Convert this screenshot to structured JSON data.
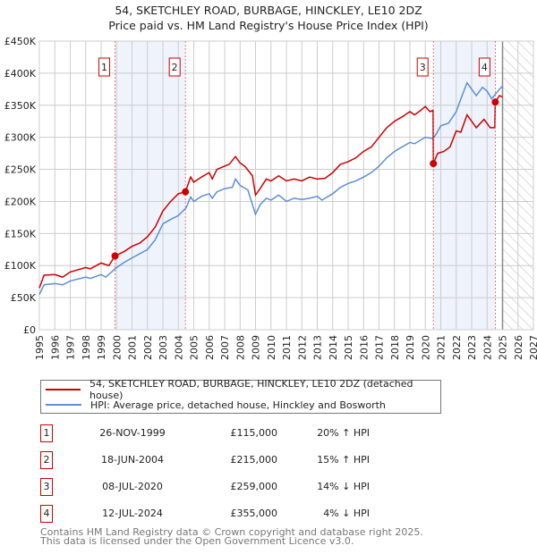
{
  "title": "54, SKETCHLEY ROAD, BURBAGE, HINCKLEY, LE10 2DZ",
  "subtitle": "Price paid vs. HM Land Registry's House Price Index (HPI)",
  "chart_data": {
    "type": "line",
    "xlim": [
      1995,
      2027
    ],
    "ylim": [
      0,
      450000
    ],
    "y_ticks": [
      0,
      50000,
      100000,
      150000,
      200000,
      250000,
      300000,
      350000,
      400000,
      450000
    ],
    "y_tick_labels": [
      "£0",
      "£50K",
      "£100K",
      "£150K",
      "£200K",
      "£250K",
      "£300K",
      "£350K",
      "£400K",
      "£450K"
    ],
    "x_ticks": [
      "1995",
      "1996",
      "1997",
      "1998",
      "1999",
      "2000",
      "2001",
      "2002",
      "2003",
      "2004",
      "2005",
      "2006",
      "2007",
      "2008",
      "2009",
      "2010",
      "2011",
      "2012",
      "2013",
      "2014",
      "2015",
      "2016",
      "2017",
      "2018",
      "2019",
      "2020",
      "2021",
      "2022",
      "2023",
      "2024",
      "2025",
      "2026",
      "2027"
    ],
    "grid": true,
    "forecast_hatch_from": 2025.0,
    "shaded_ranges": [
      [
        1999.9,
        2004.46
      ],
      [
        2020.52,
        2024.53
      ]
    ],
    "series": [
      {
        "name": "54, SKETCHLEY ROAD, BURBAGE, HINCKLEY, LE10 2DZ (detached house)",
        "color": "#cc0000",
        "x": [
          1995,
          1995.3,
          1996,
          1996.5,
          1997,
          1998,
          1998.3,
          1999,
          1999.5,
          1999.9,
          2000.5,
          2001,
          2001.5,
          2002,
          2002.5,
          2003,
          2003.5,
          2004,
          2004.46,
          2004.8,
          2005,
          2005.5,
          2006,
          2006.2,
          2006.5,
          2007,
          2007.3,
          2007.7,
          2008,
          2008.3,
          2008.8,
          2009,
          2009.3,
          2009.7,
          2010,
          2010.5,
          2011,
          2011.5,
          2012,
          2012.5,
          2013,
          2013.5,
          2014,
          2014.5,
          2015,
          2015.5,
          2016,
          2016.5,
          2017,
          2017.5,
          2018,
          2018.5,
          2019,
          2019.3,
          2019.7,
          2020,
          2020.3,
          2020.5,
          2020.52,
          2020.8,
          2021.2,
          2021.6,
          2022,
          2022.3,
          2022.7,
          2023,
          2023.3,
          2023.8,
          2024.2,
          2024.5,
          2024.53,
          2024.8,
          2025
        ],
        "y": [
          65,
          85,
          86,
          82,
          90,
          97,
          95,
          104,
          100,
          115,
          122,
          130,
          135,
          145,
          160,
          185,
          200,
          212,
          215,
          238,
          230,
          238,
          245,
          235,
          250,
          255,
          258,
          270,
          260,
          255,
          240,
          210,
          220,
          235,
          232,
          240,
          232,
          235,
          232,
          238,
          235,
          236,
          245,
          258,
          262,
          268,
          278,
          285,
          300,
          315,
          325,
          332,
          340,
          335,
          342,
          348,
          340,
          342,
          259,
          275,
          278,
          285,
          310,
          308,
          335,
          325,
          315,
          328,
          315,
          315,
          355,
          365,
          363
        ]
      },
      {
        "name": "HPI: Average price, detached house, Hinckley and Bosworth",
        "color": "#5b8fd4",
        "x": [
          1995,
          1995.3,
          1996,
          1996.5,
          1997,
          1998,
          1998.3,
          1999,
          1999.3,
          2000,
          2000.5,
          2001,
          2002,
          2002.5,
          2003,
          2003.5,
          2004,
          2004.5,
          2004.8,
          2005,
          2005.5,
          2006,
          2006.2,
          2006.5,
          2007,
          2007.5,
          2007.7,
          2008,
          2008.5,
          2009,
          2009.3,
          2009.7,
          2010,
          2010.5,
          2011,
          2011.5,
          2012,
          2012.5,
          2013,
          2013.3,
          2014,
          2014.5,
          2015,
          2015.5,
          2016,
          2016.5,
          2017,
          2017.5,
          2018,
          2018.5,
          2019,
          2019.3,
          2020,
          2020.5,
          2020.7,
          2021,
          2021.5,
          2022,
          2022.3,
          2022.7,
          2023,
          2023.3,
          2023.7,
          2024,
          2024.3,
          2024.8,
          2025
        ],
        "y": [
          55,
          70,
          72,
          70,
          76,
          82,
          80,
          86,
          82,
          97,
          105,
          112,
          125,
          140,
          165,
          172,
          178,
          190,
          207,
          200,
          208,
          212,
          205,
          215,
          220,
          222,
          235,
          225,
          218,
          180,
          195,
          205,
          202,
          210,
          200,
          205,
          203,
          205,
          208,
          202,
          212,
          222,
          228,
          232,
          238,
          245,
          255,
          268,
          278,
          285,
          292,
          290,
          300,
          298,
          305,
          318,
          322,
          340,
          360,
          385,
          375,
          365,
          378,
          372,
          360,
          375,
          380
        ]
      }
    ],
    "y_unit": "thousands GBP",
    "sales": [
      {
        "label": "1",
        "x": 1999.9,
        "price": 115
      },
      {
        "label": "2",
        "x": 2004.46,
        "price": 215
      },
      {
        "label": "3",
        "x": 2020.52,
        "price": 259
      },
      {
        "label": "4",
        "x": 2024.53,
        "price": 355
      }
    ]
  },
  "legend": {
    "property": "54, SKETCHLEY ROAD, BURBAGE, HINCKLEY, LE10 2DZ (detached house)",
    "hpi": "HPI: Average price, detached house, Hinckley and Bosworth"
  },
  "transactions": [
    {
      "num": "1",
      "date": "26-NOV-1999",
      "price": "£115,000",
      "hpi": "20% ↑ HPI"
    },
    {
      "num": "2",
      "date": "18-JUN-2004",
      "price": "£215,000",
      "hpi": "15% ↑ HPI"
    },
    {
      "num": "3",
      "date": "08-JUL-2020",
      "price": "£259,000",
      "hpi": "14% ↓ HPI"
    },
    {
      "num": "4",
      "date": "12-JUL-2024",
      "price": "£355,000",
      "hpi": "4% ↓ HPI"
    }
  ],
  "footer": {
    "line1": "Contains HM Land Registry data © Crown copyright and database right 2025.",
    "line2": "This data is licensed under the Open Government Licence v3.0."
  }
}
